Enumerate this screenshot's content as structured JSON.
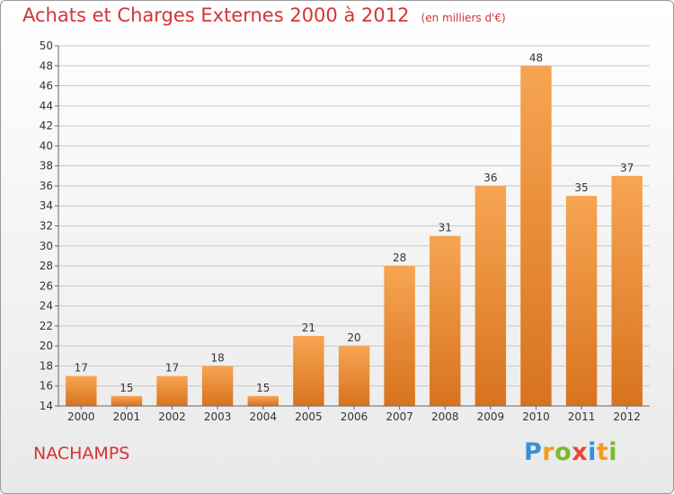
{
  "header": {
    "title": "Achats et Charges Externes 2000 à 2012",
    "subtitle": "(en milliers d'€)"
  },
  "footer": {
    "commune": "NACHAMPS",
    "logo_letters": [
      {
        "char": "P",
        "color": "#3a8fd6"
      },
      {
        "char": "r",
        "color": "#f29b1d"
      },
      {
        "char": "o",
        "color": "#7cb82f"
      },
      {
        "char": "x",
        "color": "#e8453c"
      },
      {
        "char": "i",
        "color": "#3a8fd6"
      },
      {
        "char": "t",
        "color": "#f29b1d"
      },
      {
        "char": "i",
        "color": "#7cb82f"
      }
    ]
  },
  "chart_data": {
    "type": "bar",
    "categories": [
      "2000",
      "2001",
      "2002",
      "2003",
      "2004",
      "2005",
      "2006",
      "2007",
      "2008",
      "2009",
      "2010",
      "2011",
      "2012"
    ],
    "values": [
      17,
      15,
      17,
      18,
      15,
      21,
      20,
      28,
      31,
      36,
      48,
      35,
      37
    ],
    "title": "Achats et Charges Externes 2000 à 2012",
    "subtitle": "(en milliers d'€)",
    "xlabel": "",
    "ylabel": "",
    "ylim": [
      14,
      50
    ],
    "yticks": [
      14,
      16,
      18,
      20,
      22,
      24,
      26,
      28,
      30,
      32,
      34,
      36,
      38,
      40,
      42,
      44,
      46,
      48,
      50
    ],
    "grid": true,
    "data_labels": true,
    "colors": {
      "bar_light": "#f7a552",
      "bar_dark": "#d8731f",
      "grid": "#c8c8c8",
      "axis": "#666666"
    }
  }
}
